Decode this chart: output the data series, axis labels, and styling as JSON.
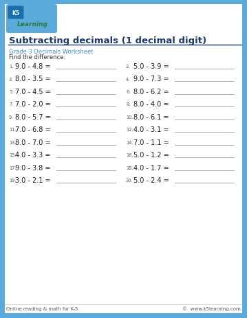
{
  "title": "Subtracting decimals (1 decimal digit)",
  "subtitle": "Grade 3 Decimals Worksheet",
  "instruction": "Find the difference.",
  "bg_color": "#5aabdc",
  "worksheet_bg": "#ffffff",
  "title_color": "#1a3a6b",
  "subtitle_color": "#4a90d9",
  "footer_left": "Online reading & math for K-5",
  "footer_right": "©  www.k5learning.com",
  "problems": [
    {
      "num": 1,
      "expr": "9.0 - 4.8 ="
    },
    {
      "num": 2,
      "expr": "5.0 - 3.9 ="
    },
    {
      "num": 3,
      "expr": "8.0 - 3.5 ="
    },
    {
      "num": 4,
      "expr": "9.0 - 7.3 ="
    },
    {
      "num": 5,
      "expr": "7.0 - 4.5 ="
    },
    {
      "num": 6,
      "expr": "8.0 - 6.2 ="
    },
    {
      "num": 7,
      "expr": "7.0 - 2.0 ="
    },
    {
      "num": 8,
      "expr": "8.0 - 4.0 ="
    },
    {
      "num": 9,
      "expr": "8.0 - 5.7 ="
    },
    {
      "num": 10,
      "expr": "8.0 - 6.1 ="
    },
    {
      "num": 11,
      "expr": "7.0 - 6.8 ="
    },
    {
      "num": 12,
      "expr": "4.0 - 3.1 ="
    },
    {
      "num": 13,
      "expr": "8.0 - 7.0 ="
    },
    {
      "num": 14,
      "expr": "7.0 - 1.1 ="
    },
    {
      "num": 15,
      "expr": "4.0 - 3.3 ="
    },
    {
      "num": 16,
      "expr": "5.0 - 1.2 ="
    },
    {
      "num": 17,
      "expr": "9.0 - 3.8 ="
    },
    {
      "num": 18,
      "expr": "4.0 - 1.7 ="
    },
    {
      "num": 19,
      "expr": "3.0 - 2.1 ="
    },
    {
      "num": 20,
      "expr": "5.0 - 2.4 ="
    }
  ]
}
